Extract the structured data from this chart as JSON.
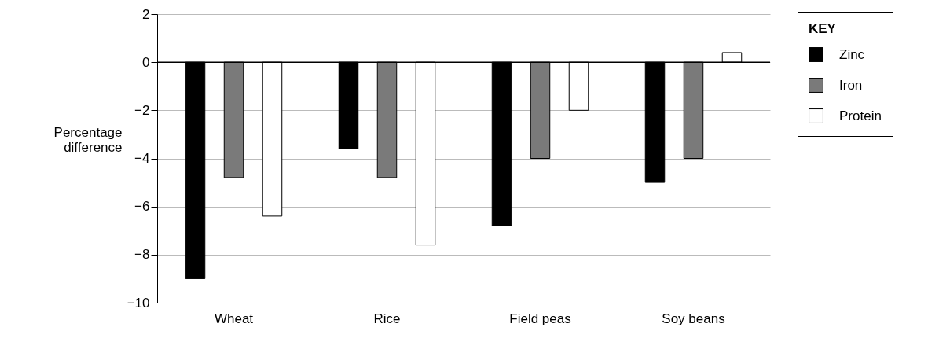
{
  "chart_data": {
    "type": "bar",
    "ylabel": "Percentage difference",
    "legend_title": "KEY",
    "categories": [
      "Wheat",
      "Rice",
      "Field peas",
      "Soy beans"
    ],
    "series": [
      {
        "name": "Zinc",
        "color": "#000000",
        "values": [
          -9,
          -3.6,
          -6.8,
          -5
        ]
      },
      {
        "name": "Iron",
        "color": "#7a7a7a",
        "values": [
          -4.8,
          -4.8,
          -4,
          -4
        ]
      },
      {
        "name": "Protein",
        "color": "#ffffff",
        "values": [
          -6.4,
          -7.6,
          -2,
          0.4
        ]
      }
    ],
    "ylim": [
      -10,
      2
    ],
    "yticks": [
      -10,
      -8,
      -6,
      -4,
      -2,
      0,
      2
    ],
    "grid": "y",
    "legend": "top right",
    "ref_lines": [
      {
        "axis": "y",
        "value": 0,
        "color": "#000000"
      }
    ]
  }
}
